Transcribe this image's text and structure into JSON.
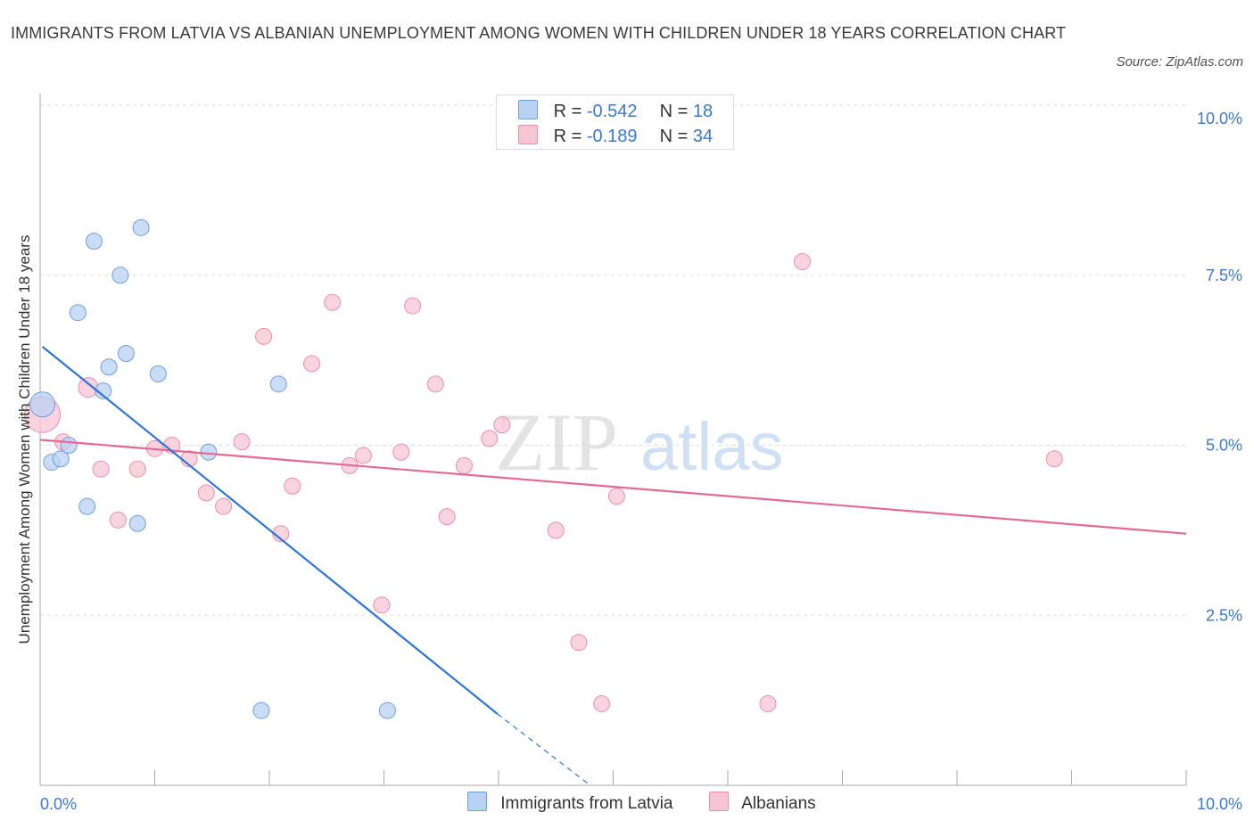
{
  "title": "IMMIGRANTS FROM LATVIA VS ALBANIAN UNEMPLOYMENT AMONG WOMEN WITH CHILDREN UNDER 18 YEARS CORRELATION CHART",
  "source": "Source: ZipAtlas.com",
  "watermark": {
    "zip": "ZIP",
    "atlas": "atlas"
  },
  "legend": {
    "latvia": {
      "r_label": "R =",
      "r_value": "-0.542",
      "n_label": "N =",
      "n_value": "18"
    },
    "albanian": {
      "r_label": "R =",
      "r_value": "-0.189",
      "n_label": "N =",
      "n_value": "34"
    }
  },
  "series_labels": {
    "latvia": "Immigrants from Latvia",
    "albanian": "Albanians"
  },
  "colors": {
    "latvia_fill": "#b9d2f3",
    "latvia_stroke": "#6f9fdc",
    "latvia_line": "#2e75d6",
    "albanian_fill": "#f7c4d3",
    "albanian_stroke": "#e98fac",
    "albanian_line": "#e46a95",
    "axis_label": "#3a78d4",
    "grid": "#dddddd"
  },
  "chart_data": {
    "type": "scatter",
    "title": "IMMIGRANTS FROM LATVIA VS ALBANIAN UNEMPLOYMENT AMONG WOMEN WITH CHILDREN UNDER 18 YEARS CORRELATION CHART",
    "xlabel": "",
    "ylabel": "Unemployment Among Women with Children Under 18 years",
    "xlim": [
      0,
      10
    ],
    "ylim": [
      0,
      10
    ],
    "x_tick_labels": [
      "0.0%",
      "10.0%"
    ],
    "y_ticks": [
      2.5,
      5.0,
      7.5,
      10.0
    ],
    "y_tick_labels": [
      "2.5%",
      "5.0%",
      "7.5%",
      "10.0%"
    ],
    "grid": "horizontal dashed",
    "legend_position": "top-center",
    "series": [
      {
        "name": "Immigrants from Latvia",
        "points": [
          [
            0.02,
            5.6,
            14
          ],
          [
            0.1,
            4.75,
            9
          ],
          [
            0.18,
            4.8,
            9
          ],
          [
            0.25,
            5.0,
            9
          ],
          [
            0.33,
            6.95,
            9
          ],
          [
            0.41,
            4.1,
            9
          ],
          [
            0.47,
            8.0,
            9
          ],
          [
            0.55,
            5.8,
            9
          ],
          [
            0.6,
            6.15,
            9
          ],
          [
            0.7,
            7.5,
            9
          ],
          [
            0.75,
            6.35,
            9
          ],
          [
            0.85,
            3.85,
            9
          ],
          [
            0.88,
            8.2,
            9
          ],
          [
            1.03,
            6.05,
            9
          ],
          [
            1.47,
            4.9,
            9
          ],
          [
            1.93,
            1.1,
            9
          ],
          [
            2.08,
            5.9,
            9
          ],
          [
            3.03,
            1.1,
            9
          ]
        ],
        "trend": {
          "x0": 0.02,
          "y0": 6.45,
          "x1": 3.99,
          "y1": 1.05,
          "dash_to_x": 4.8,
          "dash_to_y": 0.0
        }
      },
      {
        "name": "Albanians",
        "points": [
          [
            0.02,
            5.45,
            20
          ],
          [
            0.2,
            5.05,
            9
          ],
          [
            0.42,
            5.85,
            11
          ],
          [
            0.53,
            4.65,
            9
          ],
          [
            0.68,
            3.9,
            9
          ],
          [
            0.85,
            4.65,
            9
          ],
          [
            1.0,
            4.95,
            9
          ],
          [
            1.15,
            5.0,
            9
          ],
          [
            1.3,
            4.8,
            9
          ],
          [
            1.45,
            4.3,
            9
          ],
          [
            1.6,
            4.1,
            9
          ],
          [
            1.76,
            5.05,
            9
          ],
          [
            1.95,
            6.6,
            9
          ],
          [
            2.1,
            3.7,
            9
          ],
          [
            2.2,
            4.4,
            9
          ],
          [
            2.37,
            6.2,
            9
          ],
          [
            2.55,
            7.1,
            9
          ],
          [
            2.7,
            4.7,
            9
          ],
          [
            2.82,
            4.85,
            9
          ],
          [
            2.98,
            2.65,
            9
          ],
          [
            3.15,
            4.9,
            9
          ],
          [
            3.25,
            7.05,
            9
          ],
          [
            3.45,
            5.9,
            9
          ],
          [
            3.55,
            3.95,
            9
          ],
          [
            3.7,
            4.7,
            9
          ],
          [
            3.92,
            5.1,
            9
          ],
          [
            4.03,
            5.3,
            9
          ],
          [
            4.5,
            3.75,
            9
          ],
          [
            4.7,
            2.1,
            9
          ],
          [
            4.9,
            1.2,
            9
          ],
          [
            5.03,
            4.25,
            9
          ],
          [
            6.35,
            1.2,
            9
          ],
          [
            6.65,
            7.7,
            9
          ],
          [
            8.85,
            4.8,
            9
          ]
        ],
        "trend": {
          "x0": 0.0,
          "y0": 5.08,
          "x1": 10.0,
          "y1": 3.7
        }
      }
    ]
  }
}
